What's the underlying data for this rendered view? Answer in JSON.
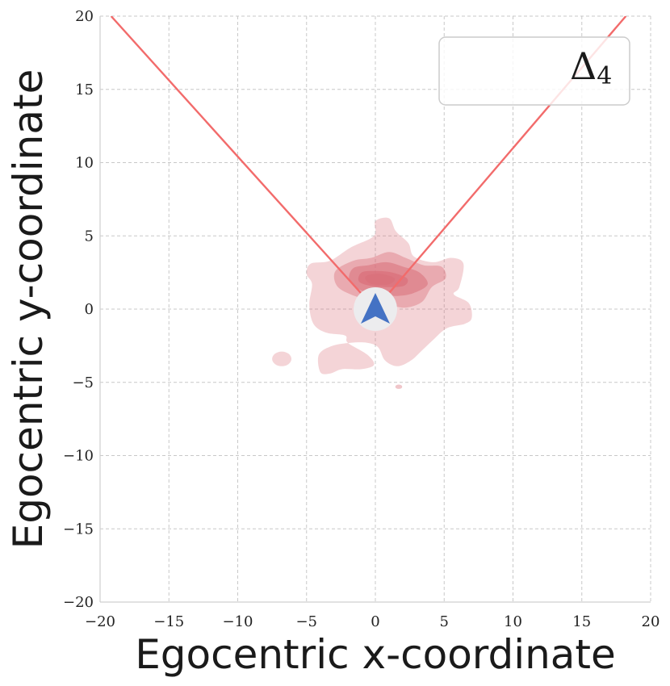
{
  "chart_data": {
    "type": "density-contour",
    "xlabel": "Egocentric x-coordinate",
    "ylabel": "Egocentric y-coordinate",
    "xlim": [
      -20,
      20
    ],
    "ylim": [
      -20,
      20
    ],
    "xticks": [
      -20,
      -15,
      -10,
      -5,
      0,
      5,
      10,
      15,
      20
    ],
    "yticks": [
      -20,
      -15,
      -10,
      -5,
      0,
      5,
      10,
      15,
      20
    ],
    "xtick_labels": [
      "−20",
      "−15",
      "−10",
      "−5",
      "0",
      "5",
      "10",
      "15",
      "20"
    ],
    "ytick_labels": [
      "−20",
      "−15",
      "−10",
      "−5",
      "0",
      "5",
      "10",
      "15",
      "20"
    ],
    "grid": true,
    "grid_style": "dashed",
    "legend": {
      "position": "top-right",
      "symbol": "Δ",
      "subscript": "4"
    },
    "field_of_view_lines": [
      {
        "x": [
          0,
          -19.2
        ],
        "y": [
          0,
          20
        ]
      },
      {
        "x": [
          0,
          18.2
        ],
        "y": [
          0,
          20
        ]
      }
    ],
    "agent_marker": {
      "x": 0,
      "y": 0,
      "shape": "arrow-up",
      "color": "#4472c4",
      "background": "#ececee"
    },
    "density_color": "#d9707a",
    "density_levels": [
      {
        "level": 1,
        "opacity": 0.3,
        "polygon": [
          [
            -4.7,
            3.1
          ],
          [
            -3.3,
            3.3
          ],
          [
            -1.8,
            4.2
          ],
          [
            -0.1,
            5.0
          ],
          [
            0.0,
            6.0
          ],
          [
            1.0,
            6.2
          ],
          [
            1.5,
            5.3
          ],
          [
            2.4,
            4.5
          ],
          [
            2.8,
            3.6
          ],
          [
            4.2,
            3.2
          ],
          [
            5.5,
            3.5
          ],
          [
            6.4,
            3.1
          ],
          [
            6.1,
            1.5
          ],
          [
            5.7,
            1.0
          ],
          [
            6.8,
            0.4
          ],
          [
            7.0,
            -0.6
          ],
          [
            6.5,
            -1.0
          ],
          [
            5.2,
            -1.3
          ],
          [
            4.2,
            -2.1
          ],
          [
            3.3,
            -2.9
          ],
          [
            2.6,
            -3.5
          ],
          [
            1.6,
            -3.9
          ],
          [
            0.7,
            -3.5
          ],
          [
            0.2,
            -2.6
          ],
          [
            -0.6,
            -2.3
          ],
          [
            -1.8,
            -2.3
          ],
          [
            -3.1,
            -2.5
          ],
          [
            -4.1,
            -3.1
          ],
          [
            -4.0,
            -4.3
          ],
          [
            -3.3,
            -4.4
          ],
          [
            -2.4,
            -4.1
          ],
          [
            -1.0,
            -4.1
          ],
          [
            -0.1,
            -3.8
          ],
          [
            -0.6,
            -3.1
          ],
          [
            -2.0,
            -2.3
          ],
          [
            -2.2,
            -1.8
          ],
          [
            -3.6,
            -1.6
          ],
          [
            -4.5,
            -1.0
          ],
          [
            -4.8,
            0.3
          ],
          [
            -4.6,
            1.7
          ],
          [
            -5.0,
            2.4
          ]
        ]
      },
      {
        "level": 2,
        "opacity": 0.42,
        "polygon": [
          [
            -2.9,
            2.6
          ],
          [
            -1.6,
            3.3
          ],
          [
            -0.3,
            3.5
          ],
          [
            1.0,
            3.9
          ],
          [
            2.2,
            3.5
          ],
          [
            3.5,
            3.0
          ],
          [
            4.8,
            2.9
          ],
          [
            5.1,
            2.1
          ],
          [
            4.1,
            1.5
          ],
          [
            3.4,
            0.5
          ],
          [
            2.2,
            0.1
          ],
          [
            1.0,
            0.3
          ],
          [
            -0.4,
            0.6
          ],
          [
            -1.8,
            1.0
          ],
          [
            -2.8,
            1.6
          ]
        ]
      },
      {
        "level": 3,
        "opacity": 0.55,
        "polygon": [
          [
            -1.6,
            2.8
          ],
          [
            -0.5,
            3.0
          ],
          [
            0.8,
            3.2
          ],
          [
            2.0,
            2.9
          ],
          [
            3.2,
            2.5
          ],
          [
            3.8,
            1.7
          ],
          [
            2.8,
            1.1
          ],
          [
            1.6,
            0.9
          ],
          [
            0.2,
            1.0
          ],
          [
            -1.1,
            1.3
          ],
          [
            -1.9,
            2.0
          ]
        ]
      },
      {
        "level": 4,
        "opacity": 0.72,
        "polygon": [
          [
            -1.0,
            2.5
          ],
          [
            0.0,
            2.6
          ],
          [
            1.2,
            2.5
          ],
          [
            2.3,
            2.1
          ],
          [
            2.1,
            1.6
          ],
          [
            0.9,
            1.5
          ],
          [
            -0.4,
            1.6
          ],
          [
            -1.2,
            1.9
          ]
        ]
      },
      {
        "level": 5,
        "opacity": 0.8,
        "polygon": [
          [
            -0.6,
            2.3
          ],
          [
            0.4,
            2.4
          ],
          [
            1.4,
            2.1
          ],
          [
            1.0,
            1.7
          ],
          [
            -0.2,
            1.7
          ],
          [
            -0.7,
            2.0
          ]
        ]
      }
    ],
    "density_blobs": [
      {
        "cx": -6.8,
        "cy": -3.4,
        "rx": 0.7,
        "ry": 0.5,
        "opacity": 0.3
      },
      {
        "cx": 1.7,
        "cy": -5.3,
        "rx": 0.25,
        "ry": 0.15,
        "opacity": 0.4
      }
    ]
  }
}
